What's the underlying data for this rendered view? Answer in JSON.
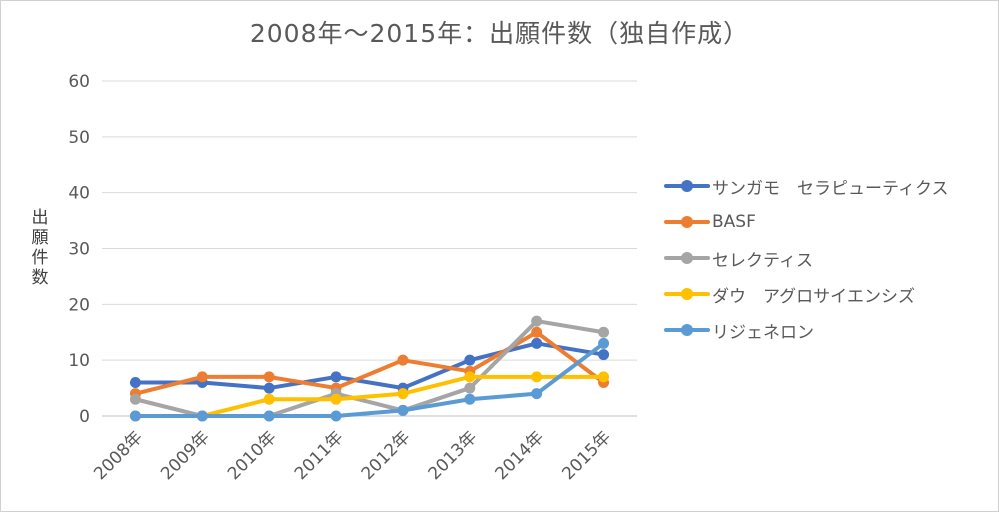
{
  "chart_data": {
    "type": "line",
    "title": "2008年～2015年：出願件数（独自作成）",
    "ylabel": "出願件数",
    "xlabel": "",
    "categories": [
      "2008年",
      "2009年",
      "2010年",
      "2011年",
      "2012年",
      "2013年",
      "2014年",
      "2015年"
    ],
    "ylim": [
      0,
      60
    ],
    "yticks": [
      "0",
      "10",
      "20",
      "30",
      "40",
      "50",
      "60"
    ],
    "grid": true,
    "legend_position": "right",
    "series": [
      {
        "name": "サンガモ　セラピューティクス",
        "color": "#4472C4",
        "values": [
          6,
          6,
          5,
          7,
          5,
          10,
          13,
          11
        ]
      },
      {
        "name": "BASF",
        "color": "#ED7D31",
        "values": [
          4,
          7,
          7,
          5,
          10,
          8,
          15,
          6
        ]
      },
      {
        "name": "セレクティス",
        "color": "#A5A5A5",
        "values": [
          3,
          0,
          0,
          4,
          1,
          5,
          17,
          15
        ]
      },
      {
        "name": "ダウ　アグロサイエンシズ",
        "color": "#FFC000",
        "values": [
          0,
          0,
          3,
          3,
          4,
          7,
          7,
          7
        ]
      },
      {
        "name": "リジェネロン",
        "color": "#5B9BD5",
        "values": [
          0,
          0,
          0,
          0,
          1,
          3,
          4,
          13
        ]
      }
    ]
  }
}
